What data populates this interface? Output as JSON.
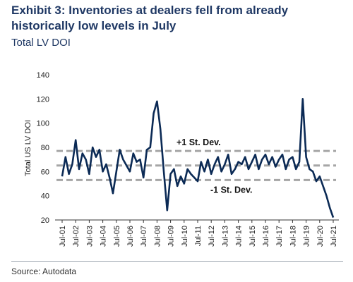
{
  "header": {
    "title": "Exhibit 3: Inventories at dealers fell from already historically low levels in July",
    "subtitle": "Total LV DOI"
  },
  "footer": {
    "source": "Source: Autodata"
  },
  "colors": {
    "series": "#0b2a55",
    "bands": "#a6a6a6",
    "title": "#1f3864"
  },
  "chart_data": {
    "type": "line",
    "ylabel": "Total US LV DOI",
    "ylim": [
      20,
      140
    ],
    "yticks": [
      20,
      40,
      60,
      80,
      100,
      120,
      140
    ],
    "xtick_labels": [
      "Jul-01",
      "Jul-02",
      "Jul-03",
      "Jul-04",
      "Jul-05",
      "Jul-06",
      "Jul-07",
      "Jul-08",
      "Jul-09",
      "Jul-10",
      "Jul-11",
      "Jul-12",
      "Jul-13",
      "Jul-14",
      "Jul-15",
      "Jul-16",
      "Jul-17",
      "Jul-18",
      "Jul-19",
      "Jul-20",
      "Jul-21"
    ],
    "grid": false,
    "reference_lines": [
      {
        "label": "+1 St. Dev.",
        "value": 77
      },
      {
        "label": "",
        "value": 65
      },
      {
        "label": "-1 St. Dev.",
        "value": 53
      }
    ],
    "series": [
      {
        "x": [
          "Jul-01",
          "Oct-01",
          "Jan-02",
          "Apr-02",
          "Jul-02",
          "Oct-02",
          "Jan-03",
          "Apr-03",
          "Jul-03",
          "Oct-03",
          "Jan-04",
          "Apr-04",
          "Jul-04",
          "Oct-04",
          "Jan-05",
          "Apr-05",
          "Jul-05",
          "Oct-05",
          "Jan-06",
          "Apr-06",
          "Jul-06",
          "Oct-06",
          "Jan-07",
          "Apr-07",
          "Jul-07",
          "Oct-07",
          "Jan-08",
          "Apr-08",
          "Jul-08",
          "Oct-08",
          "Jan-09",
          "Apr-09",
          "Jul-09",
          "Oct-09",
          "Jan-10",
          "Apr-10",
          "Jul-10",
          "Oct-10",
          "Jan-11",
          "Apr-11",
          "Jul-11",
          "Oct-11",
          "Jan-12",
          "Apr-12",
          "Jul-12",
          "Oct-12",
          "Jan-13",
          "Apr-13",
          "Jul-13",
          "Oct-13",
          "Jan-14",
          "Apr-14",
          "Jul-14",
          "Oct-14",
          "Jan-15",
          "Apr-15",
          "Jul-15",
          "Oct-15",
          "Jan-16",
          "Apr-16",
          "Jul-16",
          "Oct-16",
          "Jan-17",
          "Apr-17",
          "Jul-17",
          "Oct-17",
          "Jan-18",
          "Apr-18",
          "Jul-18",
          "Oct-18",
          "Jan-19",
          "Apr-19",
          "Jul-19",
          "Oct-19",
          "Jan-20",
          "Apr-20",
          "Jul-20",
          "Oct-20",
          "Jan-21",
          "Apr-21",
          "Jul-21"
        ],
        "values": [
          56,
          72,
          58,
          66,
          86,
          62,
          75,
          70,
          58,
          80,
          72,
          78,
          60,
          66,
          55,
          42,
          60,
          78,
          70,
          65,
          60,
          75,
          68,
          70,
          55,
          78,
          80,
          108,
          118,
          95,
          60,
          28,
          58,
          62,
          48,
          56,
          50,
          62,
          58,
          55,
          52,
          68,
          60,
          70,
          58,
          66,
          72,
          60,
          66,
          74,
          58,
          62,
          68,
          66,
          72,
          62,
          68,
          74,
          62,
          70,
          74,
          66,
          72,
          64,
          70,
          74,
          62,
          70,
          72,
          62,
          68,
          120,
          72,
          62,
          60,
          52,
          56,
          48,
          40,
          30,
          22
        ]
      }
    ]
  }
}
